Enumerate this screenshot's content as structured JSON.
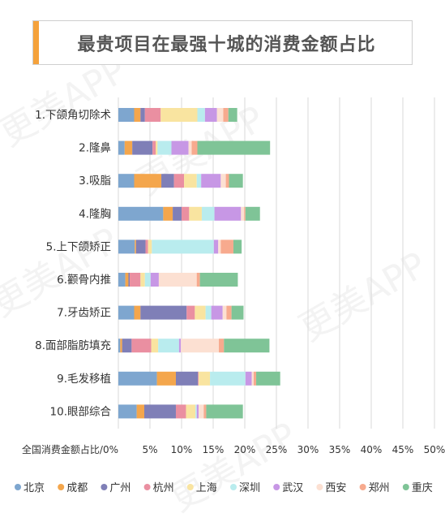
{
  "title": "最贵项目在最强十城的消费金额占比",
  "watermark": "更美APP",
  "colors": {
    "accent": "#f5a23b",
    "title_text": "#555555",
    "grid": "#d9d9d9"
  },
  "chart_data": {
    "type": "bar",
    "stacked": true,
    "orientation": "horizontal",
    "xlabel": "全国消费金额占比/0%",
    "xlim": [
      0,
      50
    ],
    "xticks": [
      "5%",
      "10%",
      "15%",
      "20%",
      "25%",
      "30%",
      "35%",
      "40%",
      "45%",
      "50%"
    ],
    "grid": true,
    "legend_position": "bottom",
    "categories": [
      "1.下颌角切除术",
      "2.隆鼻",
      "3.吸脂",
      "4.隆胸",
      "5.上下颌矫正",
      "6.颧骨内推",
      "7.牙齿矫正",
      "8.面部脂肪填充",
      "9.毛发移植",
      "10.眼部综合"
    ],
    "series": [
      {
        "name": "北京",
        "color": "#7ea6cf",
        "values": [
          2.5,
          1.0,
          2.5,
          7.1,
          2.6,
          1.1,
          2.5,
          0.3,
          6.1,
          2.9
        ]
      },
      {
        "name": "成都",
        "color": "#f4a64c",
        "values": [
          1.0,
          1.2,
          4.3,
          1.5,
          0.2,
          0.5,
          1.0,
          0.3,
          3.0,
          1.2
        ]
      },
      {
        "name": "广州",
        "color": "#7f7fb7",
        "values": [
          0.7,
          3.2,
          2.0,
          1.4,
          1.5,
          0.2,
          7.3,
          1.5,
          3.5,
          5.0
        ]
      },
      {
        "name": "杭州",
        "color": "#ea8fa1",
        "values": [
          2.5,
          0.5,
          1.6,
          1.2,
          0.4,
          1.7,
          1.3,
          3.1,
          0.1,
          1.6
        ]
      },
      {
        "name": "上海",
        "color": "#f9e4a0",
        "values": [
          5.8,
          0.3,
          2.0,
          2.0,
          0.6,
          0.7,
          1.7,
          1.1,
          1.8,
          1.5
        ]
      },
      {
        "name": "深圳",
        "color": "#b9ecee",
        "values": [
          1.2,
          2.2,
          0.7,
          2.0,
          9.8,
          0.9,
          0.9,
          3.3,
          5.6,
          0.2
        ]
      },
      {
        "name": "武汉",
        "color": "#c797e5",
        "values": [
          1.9,
          2.7,
          3.1,
          4.2,
          0.7,
          1.3,
          1.8,
          0.3,
          1.0,
          0.3
        ]
      },
      {
        "name": "西安",
        "color": "#fce0d2",
        "values": [
          1.0,
          0.5,
          0.8,
          0.5,
          0.4,
          6.0,
          0.6,
          6.0,
          0.3,
          0.8
        ]
      },
      {
        "name": "郑州",
        "color": "#f7aa8e",
        "values": [
          0.8,
          0.9,
          0.5,
          0.2,
          2.0,
          0.5,
          0.8,
          0.8,
          0.4,
          0.4
        ]
      },
      {
        "name": "重庆",
        "color": "#7fc497",
        "values": [
          1.4,
          11.5,
          2.2,
          2.3,
          1.3,
          6.0,
          1.9,
          7.2,
          3.8,
          5.8
        ]
      }
    ]
  }
}
